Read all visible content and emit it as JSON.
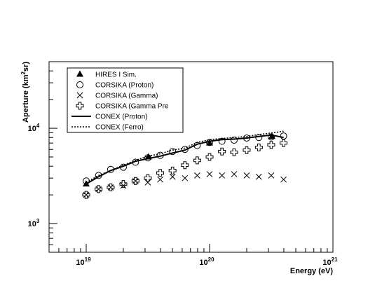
{
  "chart_data": {
    "type": "scatter",
    "title": "",
    "xlabel": "Energy (eV)",
    "ylabel_parts": {
      "prefix": "Aperture (km",
      "sup": "2",
      "suffix": "sr)"
    },
    "x_scale": "log",
    "y_scale": "log",
    "xlim": [
      5e+18,
      1e+21
    ],
    "ylim": [
      500,
      50000
    ],
    "x_tick_labels": [
      {
        "value": 1e+19,
        "base": "10",
        "exp": "19"
      },
      {
        "value": 1e+20,
        "base": "10",
        "exp": "20"
      },
      {
        "value": 1e+21,
        "base": "10",
        "exp": "21"
      }
    ],
    "y_tick_labels": [
      {
        "value": 1000,
        "base": "10",
        "exp": "3"
      },
      {
        "value": 10000,
        "base": "10",
        "exp": "4"
      }
    ],
    "grid": false,
    "legend_position": "top-left",
    "series": [
      {
        "name": "HIRES I Sim.",
        "kind": "marker",
        "marker": "filled-triangle",
        "x": [
          1e+19,
          3.2e+19,
          1e+20,
          3.2e+20
        ],
        "y": [
          2600,
          5000,
          7000,
          8200
        ]
      },
      {
        "name": "CORSIKA (Proton)",
        "kind": "marker",
        "marker": "open-circle",
        "x": [
          1e+19,
          1.26e+19,
          1.58e+19,
          2e+19,
          2.51e+19,
          3.16e+19,
          3.98e+19,
          5.01e+19,
          6.31e+19,
          7.94e+19,
          1e+20,
          1.26e+20,
          1.58e+20,
          2e+20,
          2.51e+20,
          3.16e+20,
          3.98e+20
        ],
        "y": [
          2800,
          3200,
          3700,
          3900,
          4400,
          4900,
          5200,
          5700,
          6000,
          6600,
          7100,
          7300,
          7500,
          7900,
          8000,
          8100,
          8300
        ]
      },
      {
        "name": "CORSIKA (Gamma)",
        "kind": "marker",
        "marker": "x-cross",
        "x": [
          1e+19,
          1.26e+19,
          1.58e+19,
          2e+19,
          2.51e+19,
          3.16e+19,
          3.98e+19,
          5.01e+19,
          6.31e+19,
          7.94e+19,
          1e+20,
          1.26e+20,
          1.58e+20,
          2e+20,
          2.51e+20,
          3.16e+20,
          3.98e+20
        ],
        "y": [
          2000,
          2300,
          2400,
          2500,
          2800,
          2700,
          2900,
          3100,
          3000,
          3200,
          3300,
          3200,
          3300,
          3200,
          3100,
          3200,
          2900
        ]
      },
      {
        "name": "CORSIKA (Gamma Pre",
        "kind": "marker",
        "marker": "open-cross",
        "x": [
          1e+19,
          1.26e+19,
          1.58e+19,
          2e+19,
          2.51e+19,
          3.16e+19,
          3.98e+19,
          5.01e+19,
          6.31e+19,
          7.94e+19,
          1e+20,
          1.26e+20,
          1.58e+20,
          2e+20,
          2.51e+20,
          3.16e+20,
          3.98e+20
        ],
        "y": [
          2000,
          2300,
          2400,
          2600,
          2800,
          3000,
          3400,
          3600,
          4100,
          4600,
          5000,
          5700,
          5600,
          5900,
          6300,
          6700,
          7000
        ]
      },
      {
        "name": "CONEX (Proton)",
        "kind": "line",
        "style": "solid",
        "x": [
          1e+19,
          1.26e+19,
          1.58e+19,
          2e+19,
          2.51e+19,
          3.16e+19,
          3.98e+19,
          5.01e+19,
          6.31e+19,
          7.94e+19,
          1e+20,
          1.26e+20,
          1.58e+20,
          2e+20,
          2.51e+20,
          3.16e+20,
          3.98e+20
        ],
        "y": [
          2600,
          3100,
          3600,
          4000,
          4500,
          4800,
          5100,
          5500,
          5900,
          6800,
          7300,
          7600,
          7700,
          7900,
          8200,
          8500,
          8000
        ]
      },
      {
        "name": "CONEX (Ferro)",
        "kind": "line",
        "style": "dotted",
        "x": [
          1e+19,
          1.26e+19,
          1.58e+19,
          2e+19,
          2.51e+19,
          3.16e+19,
          3.98e+19,
          5.01e+19,
          6.31e+19,
          7.94e+19,
          1e+20,
          1.26e+20,
          1.58e+20,
          2e+20,
          2.51e+20,
          3.16e+20,
          3.98e+20
        ],
        "y": [
          2700,
          3200,
          3600,
          4100,
          4600,
          5100,
          5400,
          5900,
          6200,
          7100,
          7600,
          7800,
          8000,
          8200,
          8600,
          8900,
          9300
        ]
      }
    ]
  }
}
